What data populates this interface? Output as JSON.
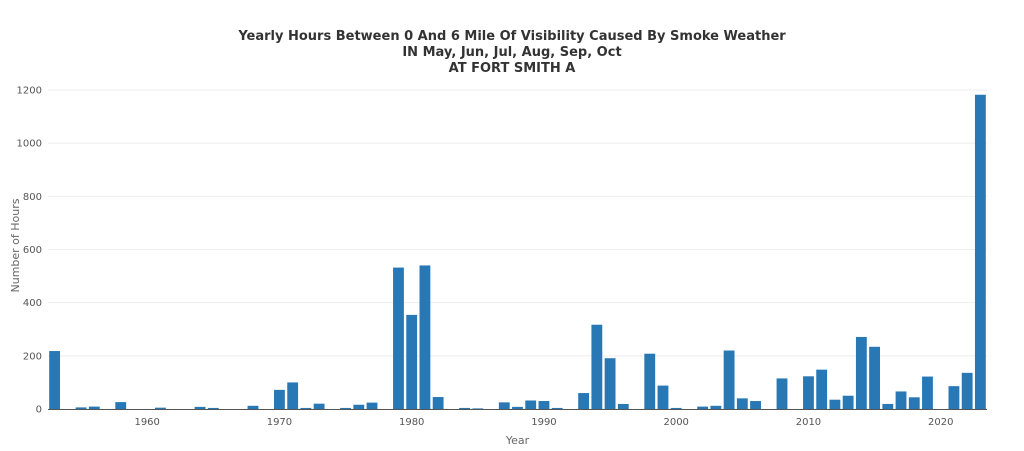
{
  "chart_data": {
    "type": "bar",
    "title_lines": [
      "Yearly Hours Between 0 And 6 Mile Of Visibility Caused By Smoke Weather",
      "IN May, Jun, Jul, Aug, Sep, Oct",
      "AT FORT SMITH A"
    ],
    "xlabel": "Year",
    "ylabel": "Number of Hours",
    "xlim": [
      1952.5,
      2023.5
    ],
    "ylim": [
      0,
      1230
    ],
    "yticks": [
      0,
      200,
      400,
      600,
      800,
      1000,
      1200
    ],
    "xticks": [
      1960,
      1970,
      1980,
      1990,
      2000,
      2010,
      2020
    ],
    "grid": true,
    "legend": "none",
    "bar_color": "#2878b5",
    "series": [
      {
        "x": [
          1953,
          1955,
          1956,
          1958,
          1961,
          1964,
          1965,
          1968,
          1970,
          1971,
          1972,
          1973,
          1975,
          1976,
          1977,
          1979,
          1980,
          1981,
          1982,
          1984,
          1985,
          1987,
          1988,
          1989,
          1990,
          1991,
          1993,
          1994,
          1995,
          1996,
          1998,
          1999,
          2000,
          2002,
          2003,
          2004,
          2005,
          2006,
          2008,
          2010,
          2011,
          2012,
          2013,
          2014,
          2015,
          2016,
          2017,
          2018,
          2019,
          2021,
          2022,
          2023
        ],
        "values": [
          218,
          6,
          9,
          26,
          5,
          8,
          4,
          12,
          72,
          100,
          4,
          20,
          4,
          16,
          24,
          532,
          354,
          540,
          45,
          4,
          2,
          25,
          8,
          32,
          30,
          4,
          60,
          317,
          191,
          19,
          208,
          88,
          4,
          9,
          12,
          220,
          40,
          30,
          115,
          123,
          148,
          35,
          50,
          271,
          234,
          19,
          66,
          44,
          122,
          86,
          136,
          1182
        ]
      }
    ]
  }
}
